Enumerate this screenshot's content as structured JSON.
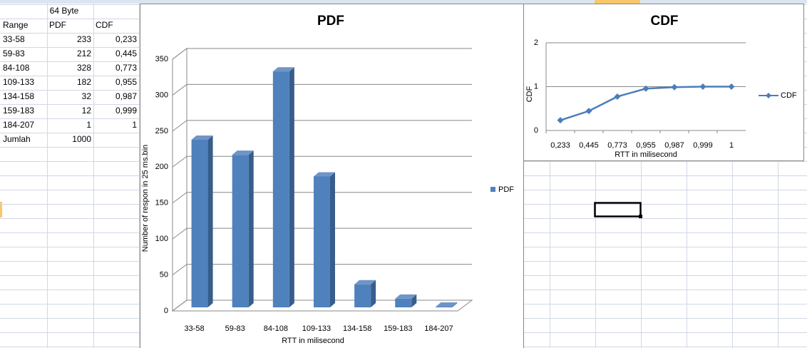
{
  "table": {
    "title": "64 Byte",
    "header": [
      "Range",
      "PDF",
      "CDF"
    ],
    "rows": [
      [
        "33-58",
        "233",
        "0,233"
      ],
      [
        "59-83",
        "212",
        "0,445"
      ],
      [
        "84-108",
        "328",
        "0,773"
      ],
      [
        "109-133",
        "182",
        "0,955"
      ],
      [
        "134-158",
        "32",
        "0,987"
      ],
      [
        "159-183",
        "12",
        "0,999"
      ],
      [
        "184-207",
        "1",
        "1"
      ]
    ],
    "footer": [
      "Jumlah",
      "1000"
    ]
  },
  "chart_data": [
    {
      "type": "bar",
      "title": "PDF",
      "x_label": "RTT in milisecond",
      "y_label": "Number of respon in 25 ms.bin",
      "categories": [
        "33-58",
        "59-83",
        "84-108",
        "109-133",
        "134-158",
        "159-183",
        "184-207"
      ],
      "series": [
        {
          "name": "PDF",
          "color": "#4f81bd",
          "values": [
            233,
            212,
            328,
            182,
            32,
            12,
            1
          ]
        }
      ],
      "ylim": [
        0,
        350
      ],
      "yticks": [
        0,
        50,
        100,
        150,
        200,
        250,
        300,
        350
      ],
      "grid": true,
      "legend": "right"
    },
    {
      "type": "line",
      "title": "CDF",
      "x_label": "RTT in milisecond",
      "y_label": "CDF",
      "categories": [
        "0,233",
        "0,445",
        "0,773",
        "0,955",
        "0,987",
        "0,999",
        "1"
      ],
      "series": [
        {
          "name": "CDF",
          "color": "#4a7ebb",
          "values": [
            0.233,
            0.445,
            0.773,
            0.955,
            0.987,
            0.999,
            1
          ]
        }
      ],
      "ylim": [
        0,
        2
      ],
      "yticks": [
        0,
        1,
        2
      ],
      "grid": true,
      "legend": "right"
    }
  ]
}
